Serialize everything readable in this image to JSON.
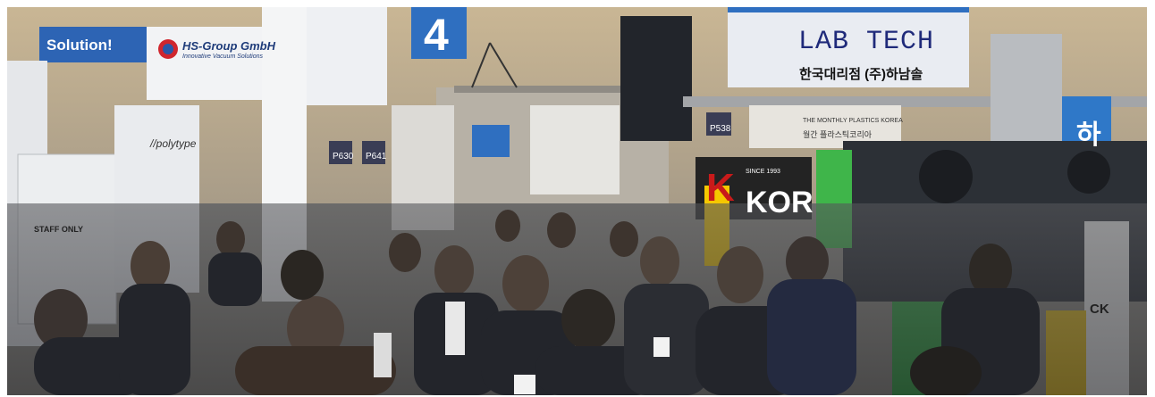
{
  "signs": {
    "solution": "Solution!",
    "hsgroup": "HS-Group GmbH",
    "hsgroup_sub": "Innovative Vacuum Solutions",
    "polytype": "//polytype",
    "staff_only": "STAFF ONLY",
    "p630": "P630",
    "p641": "P641",
    "p538": "P538",
    "hall_number": "4",
    "labtech": "LAB TECH",
    "korean_agency": "한국대리점 (주)하남솔",
    "ha": "하",
    "kor": "K",
    "kor_rest": "KOR",
    "since": "SINCE 1993",
    "monthly": "THE MONTHLY PLASTICS KOREA",
    "monthly_ko": "월간 플라스틱코리아",
    "ck": "CK"
  },
  "colors": {
    "ceiling": "#c8b99a",
    "floor_crowd": "#2a2b30",
    "booth_white": "#eef0f2",
    "machine_green": "#3fb54a",
    "sign_blue": "#2f6fc0",
    "kor_red": "#c81a1a",
    "banner_yellow": "#f5c800"
  }
}
